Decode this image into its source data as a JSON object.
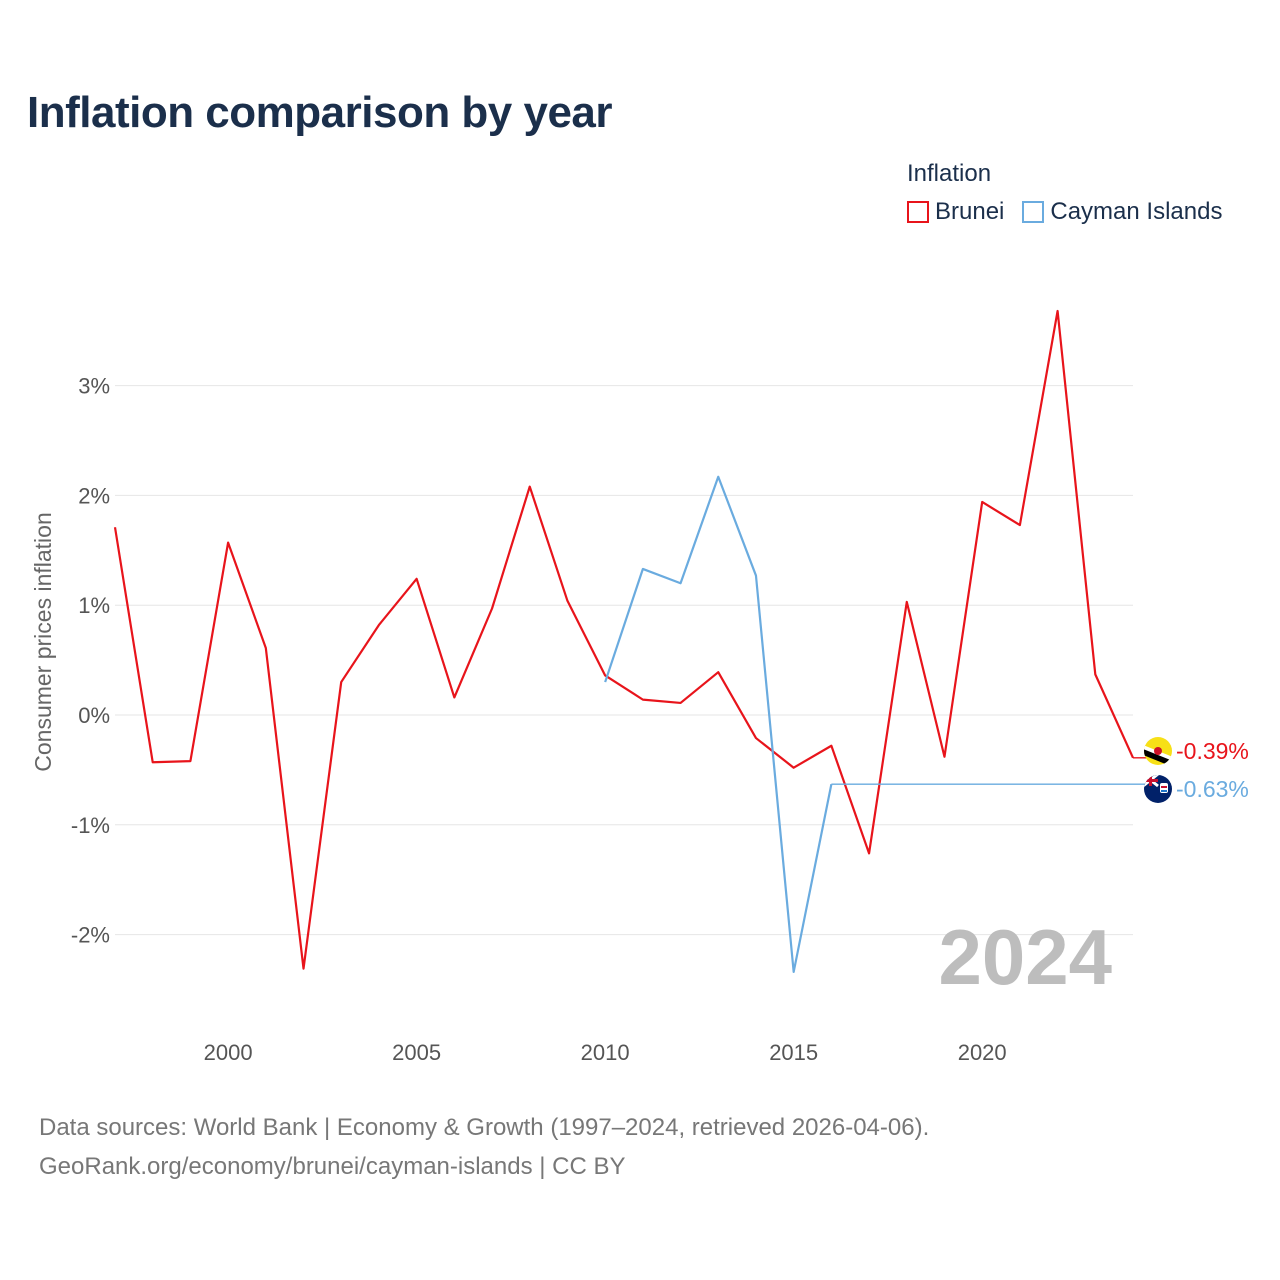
{
  "chart_data": {
    "type": "line",
    "title": "Inflation comparison by year",
    "ylabel": "Consumer prices inflation",
    "xlabel": "",
    "legend_title": "Inflation",
    "legend_position": "top-right",
    "xlim": [
      1997,
      2024
    ],
    "ylim": [
      -2.6,
      3.9
    ],
    "x_ticks": [
      2000,
      2005,
      2010,
      2015,
      2020
    ],
    "x_tick_labels": [
      "2000",
      "2005",
      "2010",
      "2015",
      "2020"
    ],
    "y_ticks": [
      3,
      2,
      1,
      0,
      -1,
      -2
    ],
    "y_tick_labels": [
      "3%",
      "2%",
      "1%",
      "0%",
      "-1%",
      "-2%"
    ],
    "grid": true,
    "current_year_label": "2024",
    "series": [
      {
        "name": "Brunei",
        "color": "#e8141b",
        "end_label": "-0.39%",
        "end_value": -0.39,
        "points": [
          [
            1997,
            1.71
          ],
          [
            1998,
            -0.43
          ],
          [
            1999,
            -0.42
          ],
          [
            2000,
            1.57
          ],
          [
            2001,
            0.61
          ],
          [
            2002,
            -2.31
          ],
          [
            2003,
            0.3
          ],
          [
            2004,
            0.82
          ],
          [
            2005,
            1.24
          ],
          [
            2006,
            0.16
          ],
          [
            2007,
            0.97
          ],
          [
            2008,
            2.08
          ],
          [
            2009,
            1.04
          ],
          [
            2010,
            0.36
          ],
          [
            2011,
            0.14
          ],
          [
            2012,
            0.11
          ],
          [
            2013,
            0.39
          ],
          [
            2014,
            -0.21
          ],
          [
            2015,
            -0.48
          ],
          [
            2016,
            -0.28
          ],
          [
            2017,
            -1.26
          ],
          [
            2018,
            1.03
          ],
          [
            2019,
            -0.38
          ],
          [
            2020,
            1.94
          ],
          [
            2021,
            1.73
          ],
          [
            2022,
            3.68
          ],
          [
            2023,
            0.37
          ],
          [
            2024,
            -0.39
          ]
        ]
      },
      {
        "name": "Cayman Islands",
        "color": "#6aabdf",
        "end_label": "-0.63%",
        "end_value": -0.63,
        "carried_forward_from": 2016,
        "points": [
          [
            2010,
            0.3
          ],
          [
            2011,
            1.33
          ],
          [
            2012,
            1.2
          ],
          [
            2013,
            2.17
          ],
          [
            2014,
            1.27
          ],
          [
            2015,
            -2.34
          ],
          [
            2016,
            -0.63
          ]
        ]
      }
    ]
  },
  "footer": {
    "line1": "Data sources: World Bank | Economy & Growth (1997–2024, retrieved 2026-04-06).",
    "line2": "GeoRank.org/economy/brunei/cayman-islands | CC BY"
  }
}
